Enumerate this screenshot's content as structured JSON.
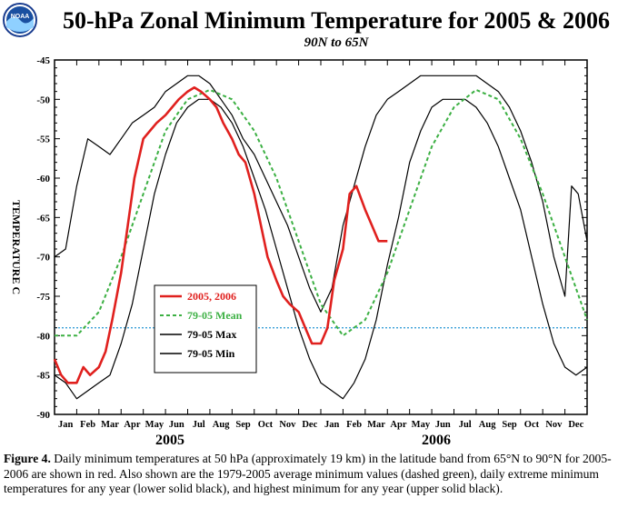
{
  "logo_text": "NOAA",
  "chart_data": {
    "type": "line",
    "title": "50-hPa Zonal Minimum Temperature for 2005 & 2006",
    "subtitle": "90N to 65N",
    "ylabel": "TEMPERATURE C",
    "ylim": [
      -90,
      -45
    ],
    "yticks": [
      -45,
      -50,
      -55,
      -60,
      -65,
      -70,
      -75,
      -80,
      -85,
      -90
    ],
    "xlim": [
      0,
      24
    ],
    "months": [
      "Jan",
      "Feb",
      "Mar",
      "Apr",
      "May",
      "Jun",
      "Jul",
      "Aug",
      "Sep",
      "Oct",
      "Nov",
      "Dec",
      "Jan",
      "Feb",
      "Mar",
      "Apr",
      "May",
      "Jun",
      "Jul",
      "Aug",
      "Sep",
      "Oct",
      "Nov",
      "Dec"
    ],
    "years": [
      "2005",
      "2006"
    ],
    "grid": false,
    "reference_line": {
      "y": -79,
      "color": "#3aa0d8",
      "style": "dotted"
    },
    "legend": {
      "position": "lower-left",
      "entries": [
        "2005, 2006",
        "79-05 Mean",
        "79-05 Max",
        "79-05 Min"
      ]
    },
    "series": [
      {
        "name": "2005, 2006",
        "color": "#e0201e",
        "style": "solid",
        "x": [
          0.0,
          0.3,
          0.6,
          1.0,
          1.3,
          1.6,
          2.0,
          2.3,
          2.6,
          3.0,
          3.3,
          3.6,
          4.0,
          4.3,
          4.6,
          5.0,
          5.3,
          5.6,
          6.0,
          6.3,
          6.6,
          7.0,
          7.3,
          7.6,
          8.0,
          8.3,
          8.6,
          9.0,
          9.3,
          9.6,
          10.0,
          10.3,
          10.6,
          11.0,
          11.3,
          11.6,
          12.0,
          12.3,
          12.6,
          13.0,
          13.3,
          13.6,
          14.0,
          14.3,
          14.6,
          15.0
        ],
        "values": [
          -83,
          -85,
          -86,
          -86,
          -84,
          -85,
          -84,
          -82,
          -78,
          -72,
          -66,
          -60,
          -55,
          -54,
          -53,
          -52,
          -51,
          -50,
          -49,
          -48.5,
          -49,
          -50,
          -51,
          -53,
          -55,
          -57,
          -58,
          -62,
          -66,
          -70,
          -73,
          -75,
          -76,
          -77,
          -79,
          -81,
          -81,
          -79,
          -73,
          -69,
          -62,
          -61,
          -64,
          -66,
          -68,
          -68
        ]
      },
      {
        "name": "79-05 Mean",
        "color": "#3cb043",
        "style": "dashed",
        "x": [
          0,
          1,
          2,
          3,
          4,
          5,
          6,
          7,
          8,
          9,
          10,
          11,
          12,
          13,
          14,
          15,
          16,
          17,
          18,
          19,
          20,
          21,
          22,
          23,
          24
        ],
        "values": [
          -80,
          -80,
          -77,
          -70,
          -62,
          -54,
          -50,
          -48.8,
          -50,
          -54,
          -60,
          -68,
          -76,
          -80,
          -78,
          -72,
          -64,
          -56,
          -51,
          -48.8,
          -50,
          -55,
          -62,
          -70,
          -78
        ]
      },
      {
        "name": "79-05 Max",
        "color": "#000000",
        "style": "solid",
        "x": [
          0,
          0.5,
          1,
          1.5,
          2,
          2.5,
          3,
          3.5,
          4,
          4.5,
          5,
          5.5,
          6,
          6.5,
          7,
          7.5,
          8,
          8.5,
          9,
          9.5,
          10,
          10.5,
          11,
          11.5,
          12,
          12.5,
          13,
          13.5,
          14,
          14.5,
          15,
          15.5,
          16,
          16.5,
          17,
          17.5,
          18,
          18.5,
          19,
          19.5,
          20,
          20.5,
          21,
          21.5,
          22,
          22.5,
          23,
          23.3,
          23.6,
          24
        ],
        "values": [
          -70,
          -69,
          -61,
          -55,
          -56,
          -57,
          -55,
          -53,
          -52,
          -51,
          -49,
          -48,
          -47,
          -47,
          -48,
          -50,
          -52,
          -55,
          -57,
          -60,
          -63,
          -66,
          -70,
          -74,
          -77,
          -74,
          -66,
          -61,
          -56,
          -52,
          -50,
          -49,
          -48,
          -47,
          -47,
          -47,
          -47,
          -47,
          -47,
          -48,
          -49,
          -51,
          -54,
          -58,
          -63,
          -70,
          -75,
          -61,
          -62,
          -68
        ]
      },
      {
        "name": "79-05 Min",
        "color": "#000000",
        "style": "solid",
        "x": [
          0,
          0.5,
          1,
          1.5,
          2,
          2.5,
          3,
          3.5,
          4,
          4.5,
          5,
          5.5,
          6,
          6.5,
          7,
          7.5,
          8,
          8.5,
          9,
          9.5,
          10,
          10.5,
          11,
          11.5,
          12,
          12.5,
          13,
          13.5,
          14,
          14.5,
          15,
          15.5,
          16,
          16.5,
          17,
          17.5,
          18,
          18.5,
          19,
          19.5,
          20,
          20.5,
          21,
          21.5,
          22,
          22.5,
          23,
          23.5,
          24
        ],
        "values": [
          -85,
          -86,
          -88,
          -87,
          -86,
          -85,
          -81,
          -76,
          -69,
          -62,
          -57,
          -53,
          -51,
          -50,
          -50,
          -51,
          -53,
          -56,
          -60,
          -64,
          -69,
          -74,
          -79,
          -83,
          -86,
          -87,
          -88,
          -86,
          -83,
          -78,
          -71,
          -65,
          -58,
          -54,
          -51,
          -50,
          -50,
          -50,
          -51,
          -53,
          -56,
          -60,
          -64,
          -70,
          -76,
          -81,
          -84,
          -85,
          -84
        ]
      }
    ]
  },
  "caption": {
    "label": "Figure 4.",
    "text": " Daily minimum temperatures at 50 hPa (approximately 19 km) in the latitude band from 65°N to 90°N for 2005-2006 are shown in red.  Also shown are the 1979-2005 average minimum values (dashed green), daily extreme minimum temperatures for any year (lower solid black), and highest minimum for any year (upper solid black)."
  }
}
